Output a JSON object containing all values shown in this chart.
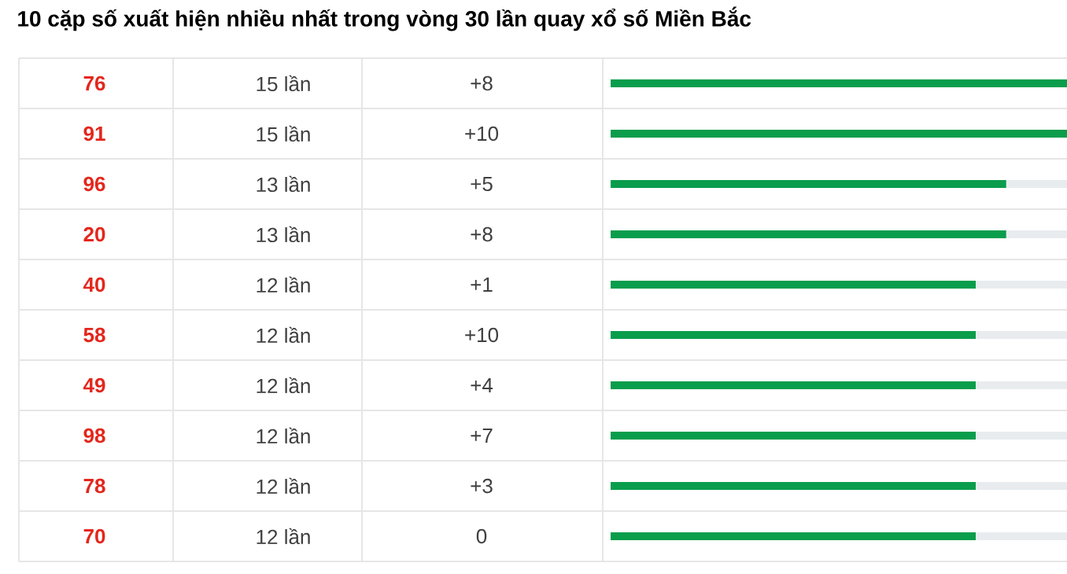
{
  "chart_data": {
    "type": "bar",
    "orientation": "horizontal",
    "title": "10 cặp số xuất hiện nhiều nhất trong vòng 30 lần quay xổ số Miền Bắc",
    "categories": [
      "76",
      "91",
      "96",
      "20",
      "40",
      "58",
      "49",
      "98",
      "78",
      "70"
    ],
    "values": [
      15,
      15,
      13,
      13,
      12,
      12,
      12,
      12,
      12,
      12
    ],
    "value_labels": [
      "15 lần",
      "15 lần",
      "13 lần",
      "13 lần",
      "12 lần",
      "12 lần",
      "12 lần",
      "12 lần",
      "12 lần",
      "12 lần"
    ],
    "color": "#0a9d4c",
    "grid": true,
    "annotations": [
      "+8",
      "+10",
      "+5",
      "+8",
      "+1",
      "+10",
      "+4",
      "+7",
      "+3",
      "0"
    ]
  }
}
